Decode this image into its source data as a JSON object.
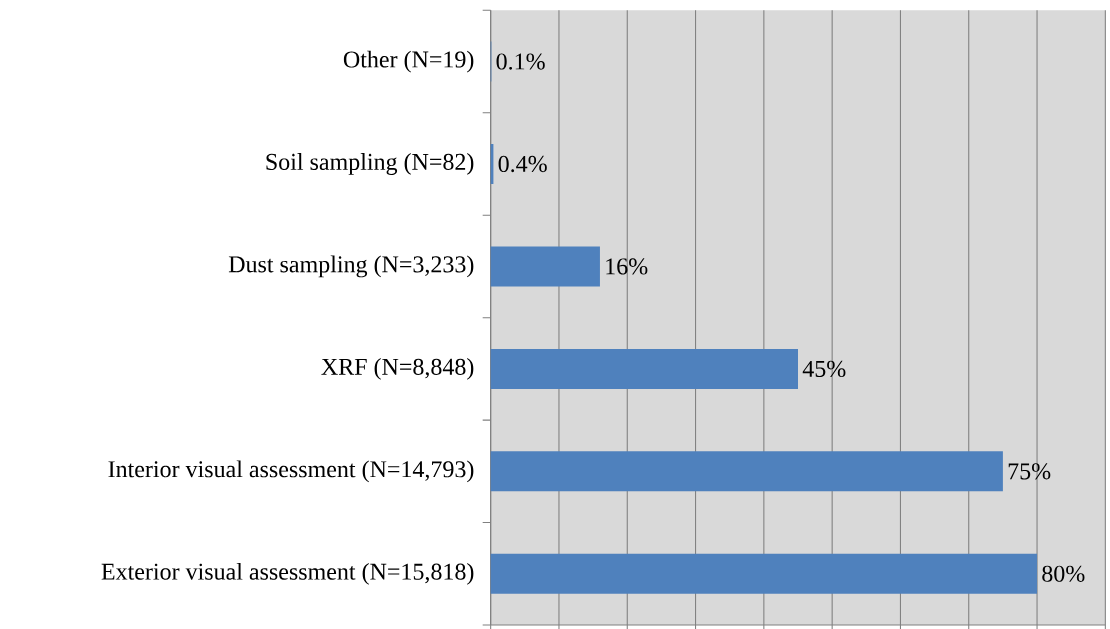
{
  "chart_data": {
    "type": "bar",
    "orientation": "horizontal",
    "categories": [
      "Other (N=19)",
      "Soil sampling (N=82)",
      "Dust sampling (N=3,233)",
      "XRF (N=8,848)",
      "Interior visual assessment (N=14,793)",
      "Exterior visual assessment (N=15,818)"
    ],
    "values": [
      0.1,
      0.4,
      16,
      45,
      75,
      80
    ],
    "value_labels": [
      "0.1%",
      "0.4%",
      "16%",
      "45%",
      "75%",
      "80%"
    ],
    "color": "#4f81bd",
    "xlim": [
      0,
      90
    ],
    "xticks": [
      {
        "value": 0,
        "label": null
      },
      {
        "value": 10,
        "label": null
      },
      {
        "value": 20,
        "label": null
      },
      {
        "value": 30,
        "label": null
      },
      {
        "value": 40,
        "label": null
      },
      {
        "value": 50,
        "label": null
      },
      {
        "value": 60,
        "label": null
      },
      {
        "value": 70,
        "label": null
      },
      {
        "value": 80,
        "label": null
      },
      {
        "value": 90,
        "label": null
      }
    ],
    "grid": "x",
    "tick_labels": "y"
  }
}
